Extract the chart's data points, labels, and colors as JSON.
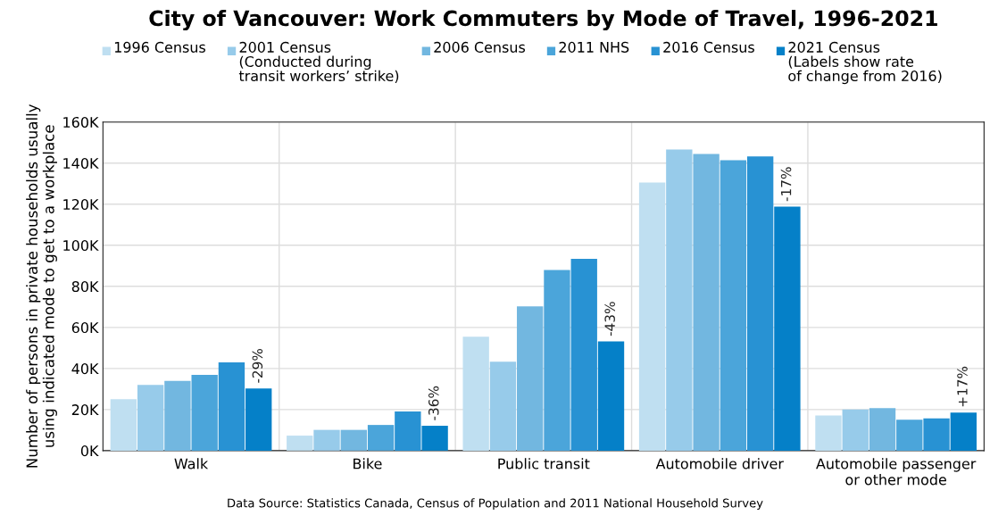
{
  "chart_data": {
    "type": "bar",
    "title": "City of Vancouver: Work Commuters by Mode of Travel, 1996-2021",
    "ylabel": "Number of persons in private households usually\nusing indicated mode to get to a workplace",
    "categories": [
      "Walk",
      "Bike",
      "Public transit",
      "Automobile driver",
      "Automobile passenger\nor other mode"
    ],
    "series": [
      {
        "name": "1996 Census",
        "color": "#bfdff1",
        "values": [
          25000,
          7300,
          55500,
          130500,
          17100
        ]
      },
      {
        "name": "2001 Census\n(Conducted during\ntransit workers’ strike)",
        "color": "#97cbea",
        "values": [
          32000,
          10100,
          43300,
          146600,
          20100
        ]
      },
      {
        "name": "2006 Census",
        "color": "#72b7e0",
        "values": [
          34000,
          10100,
          70300,
          144500,
          20700
        ]
      },
      {
        "name": "2011 NHS",
        "color": "#4ba5da",
        "values": [
          36900,
          12500,
          88000,
          141400,
          15000
        ]
      },
      {
        "name": "2016 Census",
        "color": "#2892d3",
        "values": [
          43000,
          19100,
          93400,
          143300,
          15700
        ]
      },
      {
        "name": "2021 Census\n(Labels show rate\nof change from 2016)",
        "color": "#0580c8",
        "values": [
          30300,
          12100,
          53200,
          118800,
          18500
        ]
      }
    ],
    "ylim": [
      0,
      160000
    ],
    "yticks": [
      {
        "value": 0,
        "label": "0K"
      },
      {
        "value": 20000,
        "label": "20K"
      },
      {
        "value": 40000,
        "label": "40K"
      },
      {
        "value": 60000,
        "label": "60K"
      },
      {
        "value": 80000,
        "label": "80K"
      },
      {
        "value": 100000,
        "label": "100K"
      },
      {
        "value": 120000,
        "label": "120K"
      },
      {
        "value": 140000,
        "label": "140K"
      },
      {
        "value": 160000,
        "label": "160K"
      }
    ],
    "grid": true,
    "legend": "top",
    "annotations": [
      "-29%",
      "-36%",
      "-43%",
      "-17%",
      "+17%",
      "Data Source: Statistics Canada, Census of Population and 2011 National Household Survey"
    ]
  }
}
